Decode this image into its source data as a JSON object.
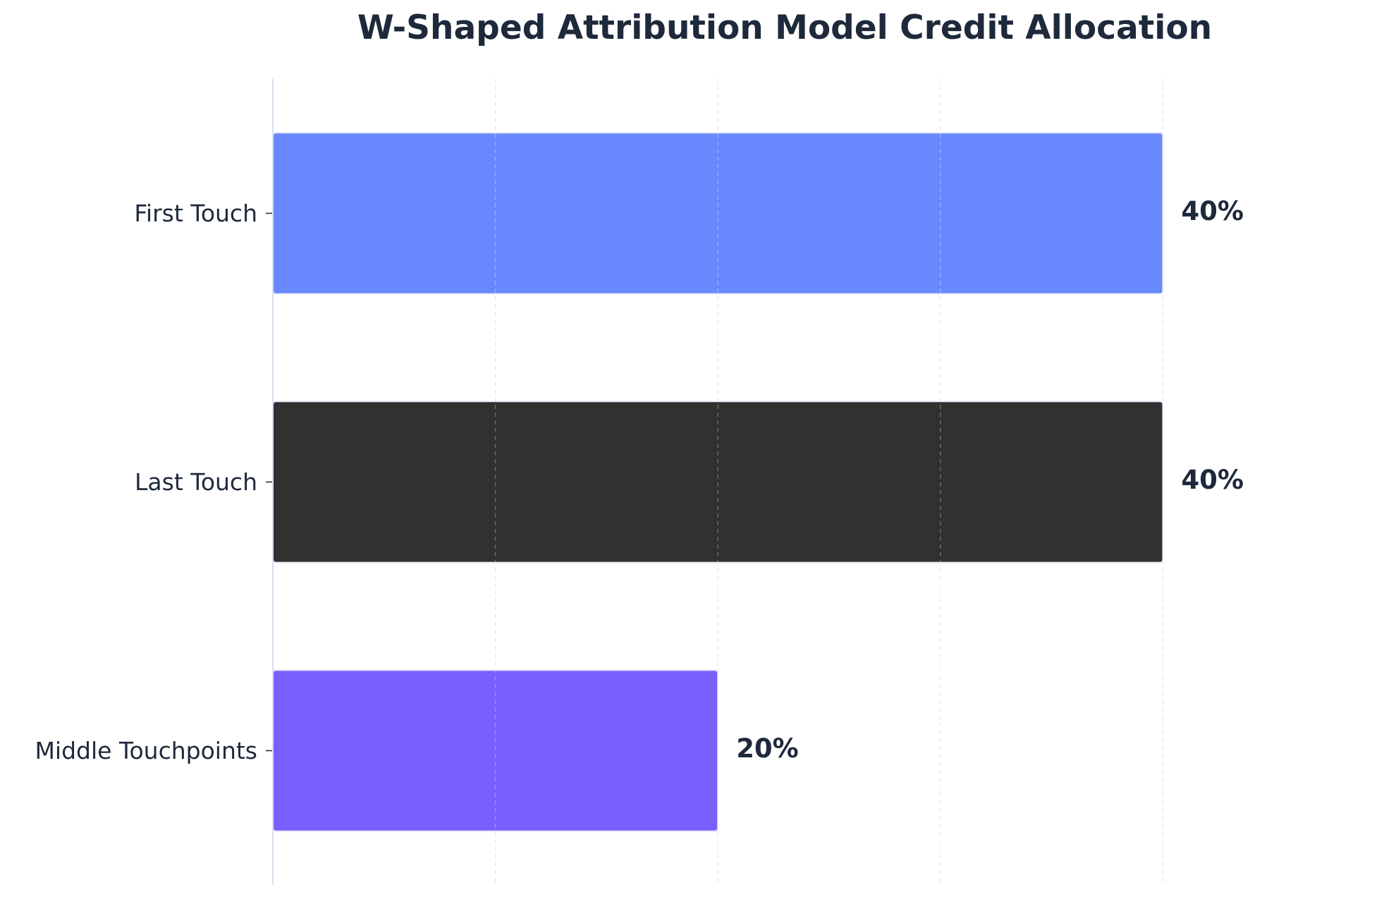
{
  "chart_data": {
    "type": "bar",
    "orientation": "horizontal",
    "title": "W-Shaped Attribution Model Credit Allocation",
    "xlabel": "",
    "ylabel": "",
    "categories": [
      "First Touch",
      "Last Touch",
      "Middle Touchpoints"
    ],
    "values": [
      40,
      40,
      20
    ],
    "value_labels": [
      "40%",
      "40%",
      "20%"
    ],
    "xlim": [
      0,
      50
    ],
    "grid": true,
    "x_ticks_visible": false,
    "bar_colors": [
      "#6888fd",
      "#313131",
      "#7a5ffe"
    ],
    "colors": {
      "title": "#1e293b",
      "text": "#1e293b",
      "axis_line": "#d7e0f2"
    }
  }
}
